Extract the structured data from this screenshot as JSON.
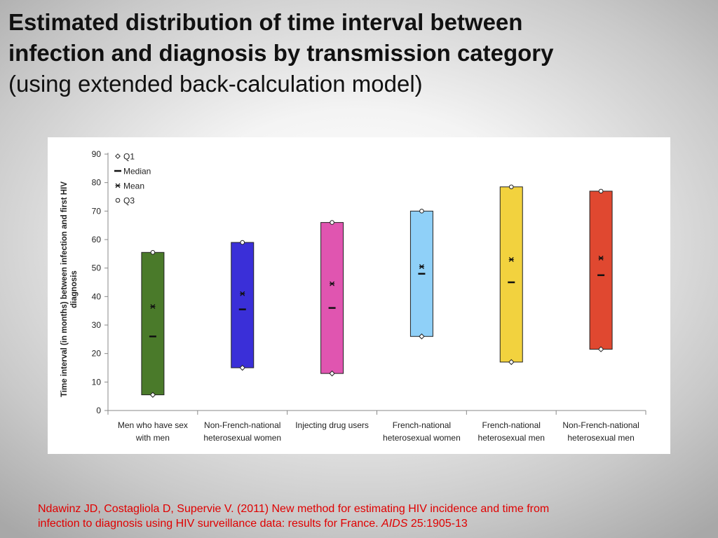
{
  "slide": {
    "title_line1": "Estimated distribution of time interval between",
    "title_line2": "infection and diagnosis by transmission category",
    "subtitle": "(using extended back-calculation model)"
  },
  "citation": {
    "text1": "Ndawinz JD, Costagliola D, Supervie V. (2011) New method for estimating HIV incidence and time from",
    "text2": "infection to diagnosis using HIV surveillance data: results for France. ",
    "journal": "AIDS",
    "tail": " 25:1905-13",
    "color": "#e00000"
  },
  "chart_data": {
    "type": "box",
    "ylabel_line1": "Time interval (in months) between infection and first HIV",
    "ylabel_line2": "diagnosis",
    "ylim": [
      0,
      90
    ],
    "yticks": [
      0,
      10,
      20,
      30,
      40,
      50,
      60,
      70,
      80,
      90
    ],
    "legend": [
      {
        "marker": "diamond",
        "label": "Q1"
      },
      {
        "marker": "dash",
        "label": "Median"
      },
      {
        "marker": "star",
        "label": "Mean"
      },
      {
        "marker": "circle",
        "label": "Q3"
      }
    ],
    "legend_position": "top-left",
    "categories": [
      {
        "line1": "Men who have sex",
        "line2": "with men",
        "color": "#4a7a2a",
        "q1": 5.5,
        "median": 26,
        "mean": 36.5,
        "q3": 55.5
      },
      {
        "line1": "Non-French-national",
        "line2": "heterosexual women",
        "color": "#3a2fd8",
        "q1": 15,
        "median": 35.5,
        "mean": 41,
        "q3": 59
      },
      {
        "line1": "Injecting drug users",
        "line2": "",
        "color": "#e055b0",
        "q1": 13,
        "median": 36,
        "mean": 44.5,
        "q3": 66
      },
      {
        "line1": "French-national",
        "line2": "heterosexual women",
        "color": "#8fd0f8",
        "q1": 26,
        "median": 48,
        "mean": 50.5,
        "q3": 70
      },
      {
        "line1": "French-national",
        "line2": "heterosexual men",
        "color": "#f2d23e",
        "q1": 17,
        "median": 45,
        "mean": 53,
        "q3": 78.5
      },
      {
        "line1": "Non-French-national",
        "line2": "heterosexual men",
        "color": "#e04830",
        "q1": 21.5,
        "median": 47.5,
        "mean": 53.5,
        "q3": 77
      }
    ]
  }
}
